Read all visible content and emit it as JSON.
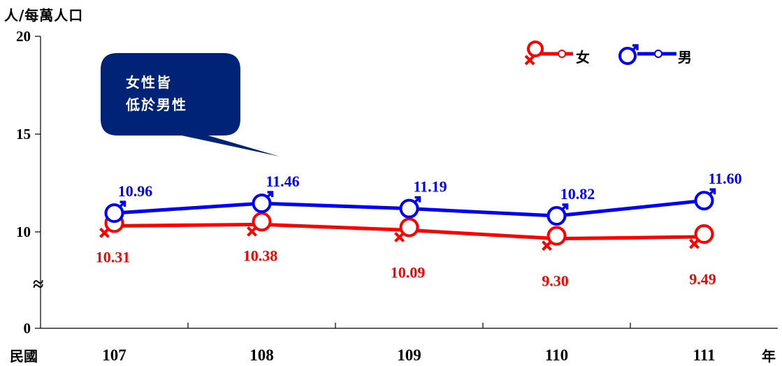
{
  "chart_data": {
    "type": "line",
    "categories": [
      "107",
      "108",
      "109",
      "110",
      "111"
    ],
    "series": [
      {
        "name": "男",
        "values": [
          10.96,
          11.46,
          11.19,
          10.82,
          11.6
        ],
        "color": "#0000ff",
        "symbol": "male-icon"
      },
      {
        "name": "女",
        "values": [
          10.31,
          10.38,
          10.09,
          9.3,
          9.49
        ],
        "color": "#ff0000",
        "symbol": "female-icon"
      }
    ],
    "ylabel": "人/每萬人口",
    "xlabel_left": "民國",
    "xlabel_right": "年",
    "yticks": [
      "0",
      "10",
      "15",
      "20"
    ],
    "ylim": [
      0,
      20
    ],
    "axis_break": "≈",
    "legend_placement": "top-right",
    "grid": false,
    "annotation": {
      "lines": [
        "女性皆",
        "低於男性"
      ],
      "background": "#002277"
    }
  }
}
